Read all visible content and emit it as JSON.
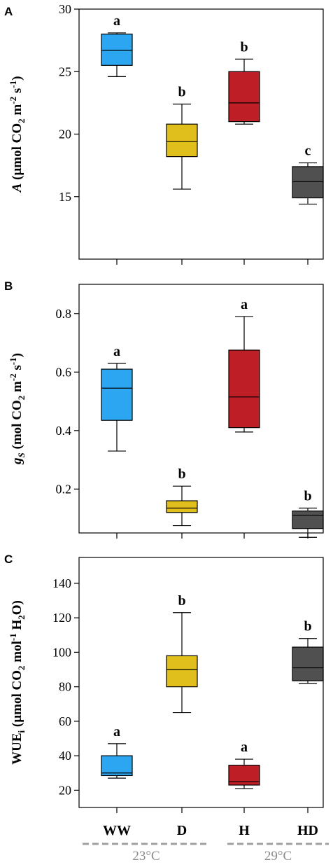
{
  "categories": [
    "WW",
    "D",
    "H",
    "HD"
  ],
  "colors": {
    "WW": "#2ca6f0",
    "D": "#e0be1c",
    "H": "#be1e26",
    "HD": "#505050",
    "temperature_line": "#a0a0a0"
  },
  "temperature_groups": [
    {
      "label": "23°C",
      "categories": [
        "WW",
        "D"
      ]
    },
    {
      "label": "29°C",
      "categories": [
        "H",
        "HD"
      ]
    }
  ],
  "chart_data": [
    {
      "type": "box",
      "panel": "A",
      "ylabel_parts": [
        "A",
        " (µmol CO",
        "2",
        " m",
        "-2",
        " s",
        "-1",
        ")"
      ],
      "ylim": [
        10,
        30
      ],
      "yticks": [
        "15",
        "20",
        "25",
        "30"
      ],
      "ytick_values": [
        15,
        20,
        25,
        30
      ],
      "categories": [
        "WW",
        "D",
        "H",
        "HD"
      ],
      "boxes": [
        {
          "category": "WW",
          "min": 24.6,
          "q1": 25.5,
          "median": 26.7,
          "q3": 28.0,
          "max": 28.1,
          "letter": "a"
        },
        {
          "category": "D",
          "min": 15.6,
          "q1": 18.2,
          "median": 19.4,
          "q3": 20.8,
          "max": 22.4,
          "letter": "b"
        },
        {
          "category": "H",
          "min": 20.8,
          "q1": 21.0,
          "median": 22.5,
          "q3": 25.0,
          "max": 26.0,
          "letter": "b"
        },
        {
          "category": "HD",
          "min": 14.4,
          "q1": 14.9,
          "median": 16.2,
          "q3": 17.4,
          "max": 17.7,
          "letter": "c"
        }
      ]
    },
    {
      "type": "box",
      "panel": "B",
      "ylabel_parts": [
        "g",
        "S",
        " (mol CO",
        "2",
        " m",
        "-2",
        " s",
        "-1",
        ")"
      ],
      "ylim": [
        0.05,
        0.9
      ],
      "yticks": [
        "0.2",
        "0.4",
        "0.6",
        "0.8"
      ],
      "ytick_values": [
        0.2,
        0.4,
        0.6,
        0.8
      ],
      "categories": [
        "WW",
        "D",
        "H",
        "HD"
      ],
      "boxes": [
        {
          "category": "WW",
          "min": 0.33,
          "q1": 0.435,
          "median": 0.545,
          "q3": 0.61,
          "max": 0.63,
          "letter": "a"
        },
        {
          "category": "D",
          "min": 0.075,
          "q1": 0.12,
          "median": 0.135,
          "q3": 0.16,
          "max": 0.21,
          "letter": "b"
        },
        {
          "category": "H",
          "min": 0.395,
          "q1": 0.41,
          "median": 0.515,
          "q3": 0.675,
          "max": 0.79,
          "letter": "a"
        },
        {
          "category": "HD",
          "min": 0.035,
          "q1": 0.065,
          "median": 0.11,
          "q3": 0.125,
          "max": 0.135,
          "letter": "b"
        }
      ]
    },
    {
      "type": "box",
      "panel": "C",
      "ylabel_parts": [
        "WUE",
        "i",
        " (µmol CO",
        "2",
        " mol",
        "-1",
        " H",
        "2",
        "O)"
      ],
      "ylim": [
        10,
        155
      ],
      "yticks": [
        "20",
        "40",
        "60",
        "80",
        "100",
        "120",
        "140"
      ],
      "ytick_values": [
        20,
        40,
        60,
        80,
        100,
        120,
        140
      ],
      "categories": [
        "WW",
        "D",
        "H",
        "HD"
      ],
      "boxes": [
        {
          "category": "WW",
          "min": 27,
          "q1": 28.5,
          "median": 30,
          "q3": 40,
          "max": 47,
          "letter": "a"
        },
        {
          "category": "D",
          "min": 65,
          "q1": 80,
          "median": 90,
          "q3": 98,
          "max": 123,
          "letter": "b"
        },
        {
          "category": "H",
          "min": 21,
          "q1": 23,
          "median": 25,
          "q3": 34.5,
          "max": 38,
          "letter": "a"
        },
        {
          "category": "HD",
          "min": 82,
          "q1": 83.5,
          "median": 91,
          "q3": 103,
          "max": 108,
          "letter": "b"
        }
      ]
    }
  ]
}
